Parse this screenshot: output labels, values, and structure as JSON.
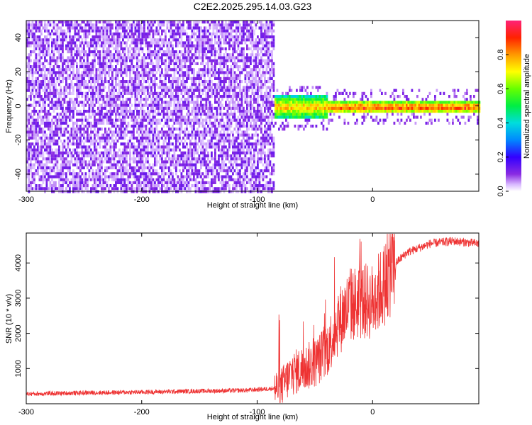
{
  "figure": {
    "title": "C2E2.2025.295.14.03.G23"
  },
  "chart_data": [
    {
      "type": "heatmap",
      "title": "C2E2.2025.295.14.03.G23",
      "xlabel": "Height of straight line (km)",
      "ylabel": "Frequency (Hz)",
      "xlim": [
        -300,
        92
      ],
      "ylim": [
        -50,
        50
      ],
      "x_ticks": [
        -300,
        -200,
        -100,
        0
      ],
      "y_ticks": [
        -40,
        -20,
        0,
        20,
        40
      ],
      "colorbar": {
        "label": "Normalized spectral amplitude",
        "range": [
          0,
          1
        ],
        "ticks": [
          0.0,
          0.2,
          0.4,
          0.6,
          0.8
        ]
      },
      "regions": [
        {
          "x_range": [
            -300,
            -85
          ],
          "description": "broadband noise",
          "amplitude": 0.1
        },
        {
          "x_range": [
            -85,
            92
          ],
          "center_frequency": 0,
          "description": "narrow carrier line",
          "amplitude_max": 0.95
        }
      ]
    },
    {
      "type": "line",
      "xlabel": "Height of straight line (km)",
      "ylabel": "SNR (10 * v/v)",
      "xlim": [
        -300,
        92
      ],
      "ylim": [
        0,
        4850
      ],
      "x_ticks": [
        -300,
        -200,
        -100,
        0
      ],
      "y_ticks": [
        1000,
        2000,
        3000,
        4000
      ],
      "series": [
        {
          "name": "SNR",
          "color": "#ee3333",
          "x": [
            -300,
            -250,
            -200,
            -150,
            -110,
            -80,
            -70,
            -60,
            -50,
            -40,
            -30,
            -20,
            -10,
            0,
            10,
            20,
            30,
            50,
            70,
            92
          ],
          "y": [
            280,
            310,
            330,
            360,
            380,
            450,
            850,
            1000,
            1150,
            1500,
            2300,
            2800,
            2900,
            2900,
            3400,
            4000,
            4300,
            4550,
            4620,
            4550
          ]
        }
      ]
    }
  ]
}
